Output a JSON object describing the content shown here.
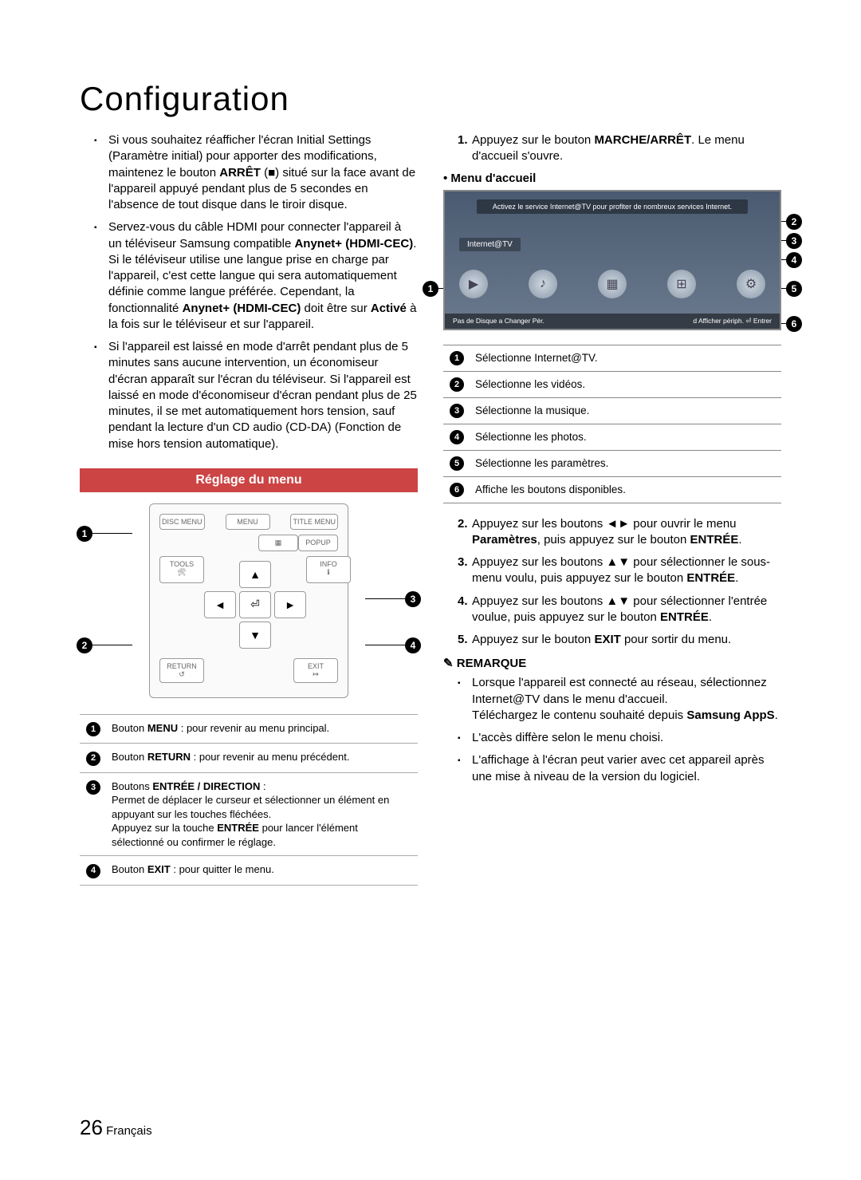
{
  "title": "Configuration",
  "left_bullets": [
    "Si vous souhaitez réafficher l'écran Initial Settings (Paramètre initial) pour apporter des modifications, maintenez le bouton <b>ARRÊT</b> (■) situé sur la face avant de l'appareil appuyé pendant plus de 5 secondes en l'absence de tout disque dans le tiroir disque.",
    "Servez-vous du câble HDMI pour connecter l'appareil à un téléviseur Samsung compatible <b>Anynet+ (HDMI-CEC)</b>. Si le téléviseur utilise une langue prise en charge par l'appareil, c'est cette langue qui sera automatiquement définie comme langue préférée. Cependant, la fonctionnalité <b>Anynet+ (HDMI-CEC)</b> doit être sur <b>Activé</b> à la fois sur le téléviseur et sur l'appareil.",
    "Si l'appareil est laissé en mode d'arrêt pendant plus de 5 minutes sans aucune intervention, un économiseur d'écran apparaît sur l'écran du téléviseur. Si l'appareil est laissé en mode d'économiseur d'écran pendant plus de 25 minutes, il se met automatiquement hors tension, sauf pendant la lecture d'un CD audio (CD-DA) (Fonction de mise hors tension automatique)."
  ],
  "section_header": "Réglage du menu",
  "remote_buttons": {
    "top": [
      "DISC MENU",
      "MENU",
      "TITLE MENU"
    ],
    "mid_left": "TOOLS",
    "mid_right": "INFO",
    "bottom_left": "RETURN",
    "bottom_right": "EXIT",
    "popup": "POPUP",
    "enter": "⏎"
  },
  "remote_callouts": [
    "1",
    "2",
    "3",
    "4"
  ],
  "legend": [
    {
      "n": "1",
      "html": "Bouton <b>MENU</b> : pour revenir au menu principal."
    },
    {
      "n": "2",
      "html": "Bouton <b>RETURN</b> : pour revenir au menu précédent."
    },
    {
      "n": "3",
      "html": "Boutons <b>ENTRÉE / DIRECTION</b> :<br>Permet de déplacer le curseur et sélectionner un élément en appuyant sur les touches fléchées.<br>Appuyez sur la touche <b>ENTRÉE</b> pour lancer l'élément sélectionné ou confirmer le réglage."
    },
    {
      "n": "4",
      "html": "Bouton <b>EXIT</b> : pour quitter le menu."
    }
  ],
  "steps": [
    {
      "n": "1.",
      "html": "Appuyez sur le bouton <b>MARCHE/ARRÊT</b>. Le menu d'accueil s'ouvre."
    }
  ],
  "menu_accueil_label": "• Menu d'accueil",
  "menu_banner": "Activez le service Internet@TV pour profiter de nombreux services Internet.",
  "menu_tab": "Internet@TV",
  "menu_bottom_left": "Pas de Disque   a Changer Pér.",
  "menu_bottom_right": "d Afficher périph.  ⏎ Entrer",
  "menu_icons": [
    "▶",
    "♪",
    "▦",
    "⊞",
    "⚙"
  ],
  "screenshot_callouts": [
    "1",
    "2",
    "3",
    "4",
    "5",
    "6"
  ],
  "select_rows": [
    {
      "n": "1",
      "t": "Sélectionne Internet@TV."
    },
    {
      "n": "2",
      "t": "Sélectionne les vidéos."
    },
    {
      "n": "3",
      "t": "Sélectionne la musique."
    },
    {
      "n": "4",
      "t": "Sélectionne les photos."
    },
    {
      "n": "5",
      "t": "Sélectionne les paramètres."
    },
    {
      "n": "6",
      "t": "Affiche les boutons disponibles."
    }
  ],
  "steps2": [
    {
      "n": "2.",
      "html": "Appuyez sur les boutons ◄► pour ouvrir le menu <b>Paramètres</b>, puis appuyez sur le bouton <b>ENTRÉE</b>."
    },
    {
      "n": "3.",
      "html": "Appuyez sur les boutons ▲▼ pour sélectionner le sous-menu voulu, puis appuyez sur le bouton <b>ENTRÉE</b>."
    },
    {
      "n": "4.",
      "html": "Appuyez sur les boutons ▲▼ pour sélectionner l'entrée voulue, puis appuyez sur le bouton <b>ENTRÉE</b>."
    },
    {
      "n": "5.",
      "html": "Appuyez sur le bouton <b>EXIT</b> pour sortir du menu."
    }
  ],
  "remark_head": "REMARQUE",
  "remarks": [
    "Lorsque l'appareil est connecté au réseau, sélectionnez Internet@TV dans le menu d'accueil.<br>Téléchargez le contenu souhaité depuis <b>Samsung AppS</b>.",
    "L'accès diffère selon le menu choisi.",
    "L'affichage à l'écran peut varier avec cet appareil après une mise à niveau de la version du logiciel."
  ],
  "page_number": "26",
  "page_lang": "Français"
}
